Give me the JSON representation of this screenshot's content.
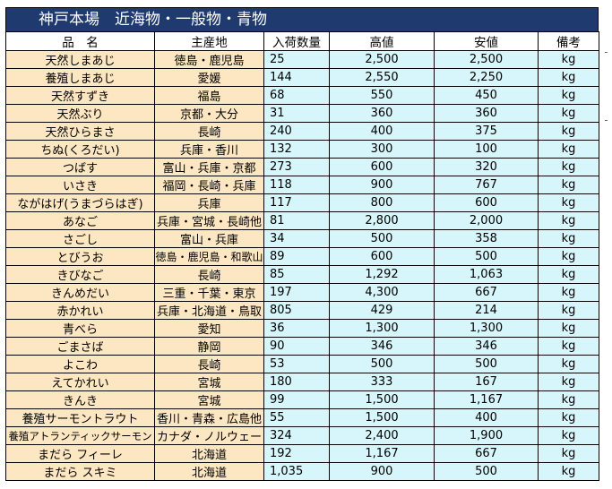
{
  "title": "神戸本場　近海物・一般物・青物",
  "headers": {
    "name": "品　名",
    "origin": "主産地",
    "qty": "入荷数量",
    "high": "高値",
    "low": "安値",
    "note": "備考"
  },
  "rows": [
    {
      "name": "天然しまあじ",
      "origin": "徳島・鹿児島",
      "qty": "25",
      "high": "2,500",
      "low": "2,500",
      "unit": "kg"
    },
    {
      "name": "養殖しまあじ",
      "origin": "愛媛",
      "qty": "144",
      "high": "2,550",
      "low": "2,250",
      "unit": "kg"
    },
    {
      "name": "天然すずき",
      "origin": "福島",
      "qty": "68",
      "high": "550",
      "low": "450",
      "unit": "kg"
    },
    {
      "name": "天然ぶり",
      "origin": "京都・大分",
      "qty": "31",
      "high": "360",
      "low": "360",
      "unit": "kg"
    },
    {
      "name": "天然ひらまさ",
      "origin": "長崎",
      "qty": "240",
      "high": "400",
      "low": "375",
      "unit": "kg"
    },
    {
      "name": "ちぬ(くろだい)",
      "origin": "兵庫・香川",
      "qty": "132",
      "high": "300",
      "low": "100",
      "unit": "kg"
    },
    {
      "name": "つばす",
      "origin": "富山・兵庫・京都",
      "qty": "273",
      "high": "600",
      "low": "320",
      "unit": "kg"
    },
    {
      "name": "いさき",
      "origin": "福岡・長崎・兵庫",
      "qty": "118",
      "high": "900",
      "low": "767",
      "unit": "kg"
    },
    {
      "name": "ながはげ(うまづらはぎ)",
      "origin": "兵庫",
      "qty": "117",
      "high": "800",
      "low": "600",
      "unit": "kg"
    },
    {
      "name": "あなご",
      "origin": "兵庫・宮城・長崎他",
      "qty": "81",
      "high": "2,800",
      "low": "2,000",
      "unit": "kg"
    },
    {
      "name": "さごし",
      "origin": "富山・兵庫",
      "qty": "34",
      "high": "500",
      "low": "358",
      "unit": "kg"
    },
    {
      "name": "とびうお",
      "origin": "徳島・鹿児島・和歌山",
      "qty": "89",
      "high": "600",
      "low": "500",
      "unit": "kg"
    },
    {
      "name": "きびなご",
      "origin": "長崎",
      "qty": "85",
      "high": "1,292",
      "low": "1,063",
      "unit": "kg"
    },
    {
      "name": "きんめだい",
      "origin": "三重・千葉・東京",
      "qty": "197",
      "high": "4,300",
      "low": "667",
      "unit": "kg"
    },
    {
      "name": "赤かれい",
      "origin": "兵庫・北海道・鳥取",
      "qty": "805",
      "high": "429",
      "low": "214",
      "unit": "kg"
    },
    {
      "name": "青べら",
      "origin": "愛知",
      "qty": "36",
      "high": "1,300",
      "low": "1,300",
      "unit": "kg"
    },
    {
      "name": "ごまさば",
      "origin": "静岡",
      "qty": "90",
      "high": "346",
      "low": "346",
      "unit": "kg"
    },
    {
      "name": "よこわ",
      "origin": "長崎",
      "qty": "53",
      "high": "500",
      "low": "500",
      "unit": "kg"
    },
    {
      "name": "えてかれい",
      "origin": "宮城",
      "qty": "180",
      "high": "333",
      "low": "167",
      "unit": "kg"
    },
    {
      "name": "きんき",
      "origin": "宮城",
      "qty": "99",
      "high": "1,500",
      "low": "1,167",
      "unit": "kg"
    },
    {
      "name": "養殖サーモントラウト",
      "origin": "香川・青森・広島他",
      "qty": "55",
      "high": "1,500",
      "low": "400",
      "unit": "kg"
    },
    {
      "name": "養殖アトランティックサーモン",
      "origin": "カナダ・ノルウェー",
      "qty": "324",
      "high": "2,400",
      "low": "1,900",
      "unit": "kg"
    },
    {
      "name": "まだら フィーレ",
      "origin": "北海道",
      "qty": "192",
      "high": "1,167",
      "low": "667",
      "unit": "kg"
    },
    {
      "name": "まだら スキミ",
      "origin": "北海道",
      "qty": "1,035",
      "high": "900",
      "low": "500",
      "unit": "kg"
    }
  ],
  "colors": {
    "title_bg": "#1f3a6e",
    "name_bg": "#fde7c2",
    "value_bg": "#d6f6fb"
  }
}
